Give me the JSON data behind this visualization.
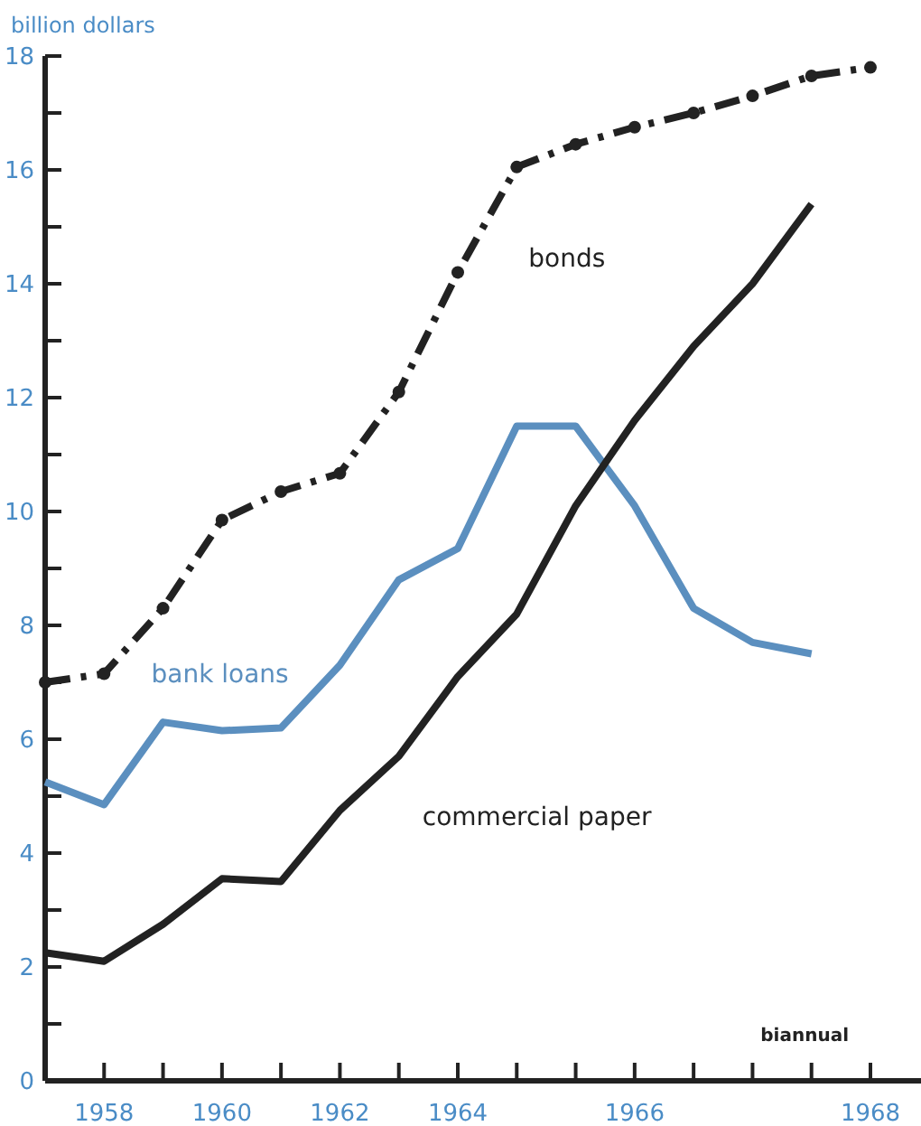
{
  "chart_data": {
    "type": "line",
    "ylabel": "billion dollars",
    "categories": [
      null,
      "1958",
      null,
      "1960",
      null,
      "1962",
      null,
      "1964",
      null,
      null,
      "1966",
      null,
      null,
      null,
      "1968"
    ],
    "ylim": [
      0,
      18
    ],
    "yticks": [
      0,
      {
        "value": 1,
        "label": null
      },
      2,
      {
        "value": 3,
        "label": null
      },
      4,
      {
        "value": 5,
        "label": null
      },
      6,
      {
        "value": 7,
        "label": null
      },
      8,
      {
        "value": 9,
        "label": null
      },
      10,
      {
        "value": 11,
        "label": null
      },
      12,
      {
        "value": 13,
        "label": null
      },
      14,
      {
        "value": 15,
        "label": null
      },
      16,
      {
        "value": 17,
        "label": null
      },
      18
    ],
    "series": [
      {
        "name": "bonds",
        "color": "#222222",
        "line_style": "dashed",
        "marker": "circle",
        "values": [
          7.0,
          7.15,
          8.3,
          9.85,
          10.35,
          10.67,
          12.1,
          14.2,
          16.05,
          16.45,
          16.75,
          17.0,
          17.3,
          17.65,
          17.8
        ]
      },
      {
        "name": "bank loans",
        "color": "#5b8fbf",
        "line_style": "solid",
        "marker": "none",
        "values": [
          5.25,
          4.85,
          6.3,
          6.15,
          6.2,
          7.3,
          8.8,
          9.35,
          11.5,
          11.5,
          10.1,
          8.3,
          7.7,
          7.5,
          null
        ]
      },
      {
        "name": "commercial paper",
        "color": "#222222",
        "line_style": "solid",
        "marker": "none",
        "values": [
          2.25,
          2.1,
          2.75,
          3.55,
          3.5,
          4.75,
          5.7,
          7.1,
          8.2,
          10.1,
          11.6,
          12.9,
          14.0,
          15.4,
          null
        ]
      }
    ],
    "annotations": [
      "biannual"
    ],
    "grid": false
  }
}
